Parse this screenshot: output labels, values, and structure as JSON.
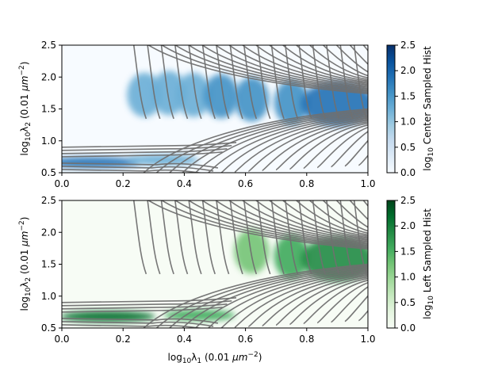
{
  "chart_data": [
    {
      "type": "heatmap",
      "panel": "top",
      "xlabel": "",
      "ylabel": "log$_{10}$λ$_2$ (0.01 μm$^{-2}$)",
      "ylabel_text": "log10λ2 (0.01 μm−2)",
      "xlim": [
        0.0,
        1.0
      ],
      "ylim": [
        0.5,
        2.5
      ],
      "xticks": [
        "0.0",
        "0.2",
        "0.4",
        "0.6",
        "0.8",
        "1.0"
      ],
      "yticks": [
        "0.5",
        "1.0",
        "1.5",
        "2.0",
        "2.5"
      ],
      "colorbar": {
        "label": "log10 Center Sampled Hist",
        "range": [
          0.0,
          2.5
        ],
        "ticks": [
          "0.0",
          "0.5",
          "1.0",
          "1.5",
          "2.0",
          "2.5"
        ],
        "colors": [
          "#f7fbff",
          "#deebf7",
          "#c6dbef",
          "#9ecae1",
          "#6baed6",
          "#4292c6",
          "#2171b5",
          "#08519c",
          "#08306b"
        ]
      },
      "blobs": [
        {
          "x": 0.1,
          "y": 0.66,
          "level": 2.0
        },
        {
          "x": 0.33,
          "y": 0.7,
          "level": 1.1
        },
        {
          "x": 0.27,
          "y": 1.72,
          "level": 1.2
        },
        {
          "x": 0.35,
          "y": 1.75,
          "level": 1.3
        },
        {
          "x": 0.43,
          "y": 1.72,
          "level": 1.4
        },
        {
          "x": 0.52,
          "y": 1.7,
          "level": 1.5
        },
        {
          "x": 0.62,
          "y": 1.65,
          "level": 1.6
        },
        {
          "x": 0.75,
          "y": 1.6,
          "level": 1.6
        },
        {
          "x": 0.9,
          "y": 1.58,
          "level": 1.8
        }
      ]
    },
    {
      "type": "heatmap",
      "panel": "bottom",
      "xlabel": "log$_{10}$λ$_1$ (0.01 μm$^{-2}$)",
      "xlabel_text": "log10λ1 (0.01 μm−2)",
      "ylabel": "log$_{10}$λ$_2$ (0.01 μm$^{-2}$)",
      "ylabel_text": "log10λ2 (0.01 μm−2)",
      "xlim": [
        0.0,
        1.0
      ],
      "ylim": [
        0.5,
        2.5
      ],
      "xticks": [
        "0.0",
        "0.2",
        "0.4",
        "0.6",
        "0.8",
        "1.0"
      ],
      "yticks": [
        "0.5",
        "1.0",
        "1.5",
        "2.0",
        "2.5"
      ],
      "colorbar": {
        "label": "log10 Left Sampled Hist",
        "range": [
          0.0,
          2.5
        ],
        "ticks": [
          "0.0",
          "0.5",
          "1.0",
          "1.5",
          "2.0",
          "2.5"
        ],
        "colors": [
          "#f7fcf5",
          "#e5f5e0",
          "#c7e9c0",
          "#a1d99b",
          "#74c476",
          "#41ab5d",
          "#238b45",
          "#006d2c",
          "#00441b"
        ]
      },
      "blobs": [
        {
          "x": 0.15,
          "y": 0.68,
          "level": 2.2
        },
        {
          "x": 0.45,
          "y": 0.7,
          "level": 1.6
        },
        {
          "x": 0.62,
          "y": 1.7,
          "level": 1.4
        },
        {
          "x": 0.75,
          "y": 1.62,
          "level": 1.6
        },
        {
          "x": 0.9,
          "y": 1.58,
          "level": 1.8
        }
      ]
    }
  ]
}
